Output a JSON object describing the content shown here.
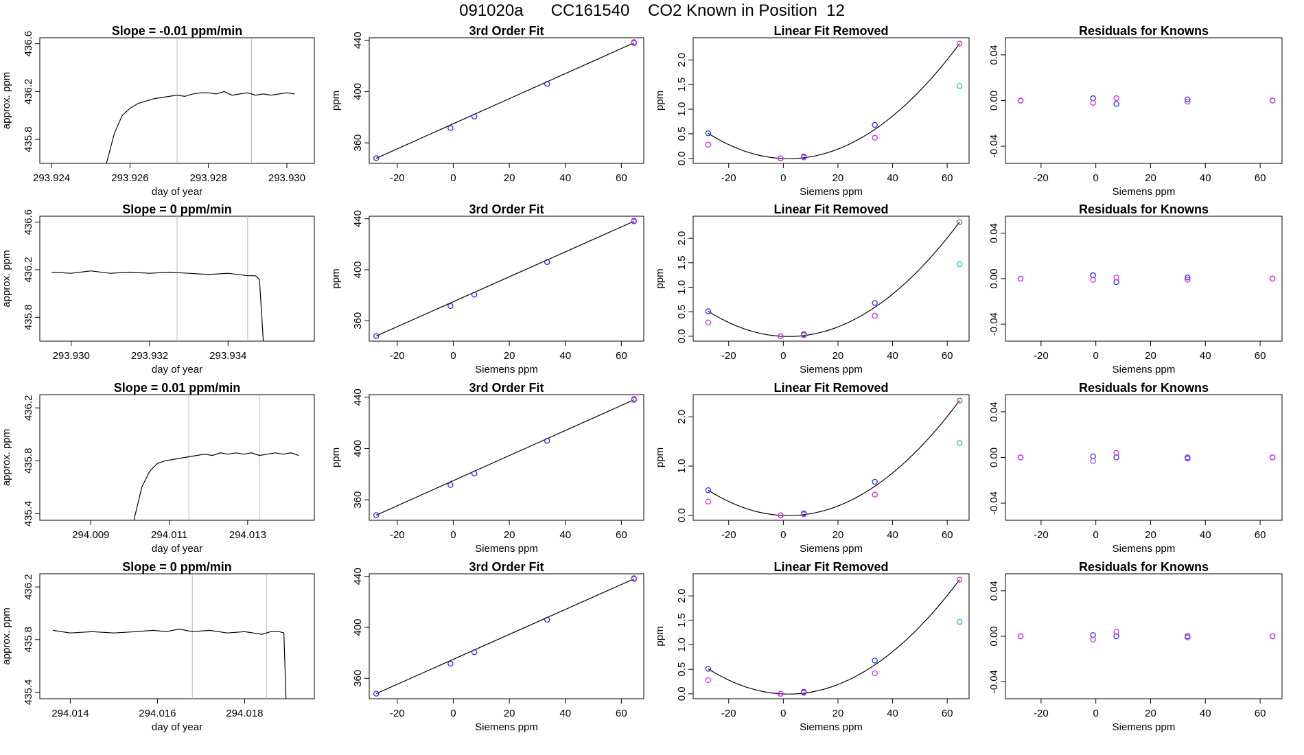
{
  "page_title": "091020a      CC161540    CO2 Known in Position  12",
  "colors": {
    "line": "#000000",
    "blue": "#2f2fe0",
    "magenta": "#cc33dd",
    "cyan": "#22bbdd",
    "purple": "#7722ee",
    "red": "#e03030",
    "vline": "#b8b8b8"
  },
  "chart_data": [
    {
      "type": "line",
      "panel": "row1-col1",
      "title": "Slope =  -0.01  ppm/min",
      "xlabel": "day of year",
      "ylabel": "approx. ppm",
      "xlim": [
        293.9237,
        293.9307
      ],
      "ylim": [
        435.6,
        436.65
      ],
      "xticks": [
        293.924,
        293.926,
        293.928,
        293.93
      ],
      "xtick_labels": [
        "293.924",
        "293.926",
        "293.928",
        "293.930"
      ],
      "yticks": [
        435.8,
        436.2,
        436.6
      ],
      "ytick_labels": [
        "435.8",
        "436.2",
        "436.6"
      ],
      "vlines": [
        293.9272,
        293.9291
      ],
      "x": [
        293.9254,
        293.9256,
        293.9258,
        293.926,
        293.9262,
        293.9264,
        293.9266,
        293.9268,
        293.927,
        293.9272,
        293.9274,
        293.9276,
        293.9278,
        293.928,
        293.9282,
        293.9284,
        293.9286,
        293.9288,
        293.929,
        293.9292,
        293.9294,
        293.9296,
        293.9298,
        293.93,
        293.9302
      ],
      "y": [
        435.6,
        435.85,
        436.0,
        436.06,
        436.1,
        436.12,
        436.14,
        436.15,
        436.16,
        436.17,
        436.16,
        436.18,
        436.19,
        436.19,
        436.18,
        436.2,
        436.17,
        436.18,
        436.19,
        436.17,
        436.18,
        436.17,
        436.18,
        436.19,
        436.18
      ]
    },
    {
      "type": "scatter",
      "panel": "row1-col2",
      "title": "3rd Order Fit",
      "xlabel": "",
      "ylabel": "ppm",
      "xlim": [
        -30,
        68
      ],
      "ylim": [
        344,
        442
      ],
      "xticks": [
        -20,
        0,
        20,
        40,
        60
      ],
      "yticks": [
        360,
        400,
        440
      ],
      "series": [
        {
          "color": "blue",
          "x": [
            -27.5,
            -1,
            7.5,
            33.5,
            64.5
          ],
          "y": [
            348,
            371.5,
            380.5,
            406,
            438
          ]
        },
        {
          "color": "magenta",
          "x": [
            64.5
          ],
          "y": [
            438.6
          ]
        }
      ],
      "fit": {
        "x": [
          -27.5,
          64.5
        ],
        "y": [
          348,
          438
        ]
      }
    },
    {
      "type": "scatter",
      "panel": "row1-col3",
      "title": "Linear Fit Removed",
      "xlabel": "Siemens ppm",
      "ylabel": "ppm",
      "xlim": [
        -33,
        68
      ],
      "ylim": [
        -0.1,
        2.45
      ],
      "xticks": [
        -20,
        0,
        20,
        40,
        60
      ],
      "yticks": [
        0,
        0.5,
        1,
        1.5,
        2
      ],
      "ytick_labels": [
        "0.0",
        "0.5",
        "1.0",
        "1.5",
        "2.0"
      ],
      "series": [
        {
          "color": "blue",
          "x": [
            -27.5,
            -1,
            7.5,
            33.5
          ],
          "y": [
            0.51,
            0,
            0.04,
            0.68
          ]
        },
        {
          "color": "magenta",
          "x": [
            -27.5,
            -1,
            7.5,
            33.5,
            64.5
          ],
          "y": [
            0.28,
            0,
            0.02,
            0.42,
            2.33
          ]
        },
        {
          "color": "cyan",
          "x": [
            64.5
          ],
          "y": [
            1.47
          ]
        }
      ],
      "fit": {
        "x": [
          -27.5,
          -1,
          7.5,
          33.5,
          64.5
        ],
        "y": [
          0.51,
          0,
          0.04,
          0.68,
          2.33
        ]
      }
    },
    {
      "type": "scatter",
      "panel": "row1-col4",
      "title": "Residuals for Knowns",
      "xlabel": "Siemens ppm",
      "ylabel": "",
      "xlim": [
        -33,
        68
      ],
      "ylim": [
        -0.055,
        0.055
      ],
      "xticks": [
        -20,
        0,
        20,
        40,
        60
      ],
      "yticks": [
        -0.04,
        0,
        0.04
      ],
      "ytick_labels": [
        "-0.04",
        "0.00",
        "0.04"
      ],
      "series": [
        {
          "color": "blue",
          "x": [
            -27.5,
            -1,
            7.5,
            33.5,
            64.5
          ],
          "y": [
            0,
            0.002,
            -0.003,
            0.001,
            0
          ]
        },
        {
          "color": "magenta",
          "x": [
            -27.5,
            -1,
            7.5,
            33.5,
            64.5
          ],
          "y": [
            0,
            -0.002,
            0.002,
            -0.001,
            0
          ]
        }
      ]
    },
    {
      "type": "line",
      "panel": "row2-col1",
      "title": "Slope =  0  ppm/min",
      "xlabel": "day of year",
      "ylabel": "approx. ppm",
      "xlim": [
        293.9292,
        293.9362
      ],
      "ylim": [
        435.6,
        436.65
      ],
      "xticks": [
        293.93,
        293.932,
        293.934
      ],
      "xtick_labels": [
        "293.930",
        "293.932",
        "293.934"
      ],
      "yticks": [
        435.8,
        436.2,
        436.6
      ],
      "ytick_labels": [
        "435.8",
        "436.2",
        "436.6"
      ],
      "vlines": [
        293.9327,
        293.9345
      ],
      "x": [
        293.9295,
        293.93,
        293.9305,
        293.931,
        293.9315,
        293.932,
        293.9325,
        293.933,
        293.9335,
        293.934,
        293.9345,
        293.9347,
        293.9348,
        293.9349
      ],
      "y": [
        436.18,
        436.17,
        436.19,
        436.17,
        436.18,
        436.17,
        436.18,
        436.17,
        436.16,
        436.17,
        436.15,
        436.15,
        436.12,
        435.6
      ]
    },
    {
      "type": "scatter",
      "panel": "row2-col2",
      "title": "3rd Order Fit",
      "xlabel": "Siemens ppm",
      "ylabel": "ppm",
      "xlim": [
        -30,
        68
      ],
      "ylim": [
        344,
        442
      ],
      "xticks": [
        -20,
        0,
        20,
        40,
        60
      ],
      "yticks": [
        360,
        400,
        440
      ],
      "series": [
        {
          "color": "blue",
          "x": [
            -27.5,
            -1,
            7.5,
            33.5,
            64.5
          ],
          "y": [
            348,
            371.5,
            380.5,
            406,
            438
          ]
        },
        {
          "color": "magenta",
          "x": [
            64.5
          ],
          "y": [
            438.6
          ]
        }
      ],
      "fit": {
        "x": [
          -27.5,
          64.5
        ],
        "y": [
          348,
          438
        ]
      }
    },
    {
      "type": "scatter",
      "panel": "row2-col3",
      "title": "Linear Fit Removed",
      "xlabel": "Siemens ppm",
      "ylabel": "ppm",
      "xlim": [
        -33,
        68
      ],
      "ylim": [
        -0.1,
        2.45
      ],
      "xticks": [
        -20,
        0,
        20,
        40,
        60
      ],
      "yticks": [
        0,
        0.5,
        1,
        1.5,
        2
      ],
      "ytick_labels": [
        "0.0",
        "0.5",
        "1.0",
        "1.5",
        "2.0"
      ],
      "series": [
        {
          "color": "blue",
          "x": [
            -27.5,
            -1,
            7.5,
            33.5
          ],
          "y": [
            0.51,
            0,
            0.04,
            0.68
          ]
        },
        {
          "color": "magenta",
          "x": [
            -27.5,
            -1,
            7.5,
            33.5,
            64.5
          ],
          "y": [
            0.28,
            0,
            0.02,
            0.42,
            2.33
          ]
        },
        {
          "color": "cyan",
          "x": [
            64.5
          ],
          "y": [
            1.47
          ]
        }
      ],
      "fit": {
        "x": [
          -27.5,
          -1,
          7.5,
          33.5,
          64.5
        ],
        "y": [
          0.51,
          0,
          0.04,
          0.68,
          2.33
        ]
      }
    },
    {
      "type": "scatter",
      "panel": "row2-col4",
      "title": "Residuals for Knowns",
      "xlabel": "Siemens ppm",
      "ylabel": "",
      "xlim": [
        -33,
        68
      ],
      "ylim": [
        -0.055,
        0.055
      ],
      "xticks": [
        -20,
        0,
        20,
        40,
        60
      ],
      "yticks": [
        -0.04,
        0,
        0.04
      ],
      "ytick_labels": [
        "-0.04",
        "0.00",
        "0.04"
      ],
      "series": [
        {
          "color": "blue",
          "x": [
            -27.5,
            -1,
            7.5,
            33.5,
            64.5
          ],
          "y": [
            0,
            0.003,
            -0.003,
            0.001,
            0
          ]
        },
        {
          "color": "magenta",
          "x": [
            -27.5,
            -1,
            7.5,
            33.5,
            64.5
          ],
          "y": [
            0,
            -0.001,
            0.001,
            -0.001,
            0
          ]
        }
      ]
    },
    {
      "type": "line",
      "panel": "row3-col1",
      "title": "Slope =  0.01  ppm/min",
      "xlabel": "day of year",
      "ylabel": "approx. ppm",
      "xlim": [
        294.0077,
        294.0147
      ],
      "ylim": [
        435.35,
        436.3
      ],
      "xticks": [
        294.009,
        294.011,
        294.013
      ],
      "xtick_labels": [
        "294.009",
        "294.011",
        "294.013"
      ],
      "yticks": [
        435.4,
        435.8,
        436.2
      ],
      "ytick_labels": [
        "435.4",
        "435.8",
        "436.2"
      ],
      "vlines": [
        294.0115,
        294.0133
      ],
      "x": [
        294.0101,
        294.0103,
        294.0105,
        294.0107,
        294.0109,
        294.0111,
        294.0113,
        294.0115,
        294.0117,
        294.0119,
        294.0121,
        294.0123,
        294.0125,
        294.0127,
        294.0129,
        294.0131,
        294.0133,
        294.0135,
        294.0137,
        294.0139,
        294.0141,
        294.0143
      ],
      "y": [
        435.35,
        435.6,
        435.72,
        435.78,
        435.8,
        435.81,
        435.82,
        435.83,
        435.84,
        435.85,
        435.84,
        435.86,
        435.85,
        435.86,
        435.85,
        435.86,
        435.84,
        435.85,
        435.86,
        435.85,
        435.86,
        435.84
      ]
    },
    {
      "type": "scatter",
      "panel": "row3-col2",
      "title": "3rd Order Fit",
      "xlabel": "Siemens ppm",
      "ylabel": "ppm",
      "xlim": [
        -30,
        68
      ],
      "ylim": [
        344,
        442
      ],
      "xticks": [
        -20,
        0,
        20,
        40,
        60
      ],
      "yticks": [
        360,
        400,
        440
      ],
      "series": [
        {
          "color": "blue",
          "x": [
            -27.5,
            -1,
            7.5,
            33.5,
            64.5
          ],
          "y": [
            348,
            371.5,
            380.5,
            406,
            438
          ]
        },
        {
          "color": "magenta",
          "x": [
            64.5
          ],
          "y": [
            438.6
          ]
        }
      ],
      "fit": {
        "x": [
          -27.5,
          64.5
        ],
        "y": [
          348,
          438
        ]
      }
    },
    {
      "type": "scatter",
      "panel": "row3-col3",
      "title": "Linear Fit Removed",
      "xlabel": "Siemens ppm",
      "ylabel": "ppm",
      "xlim": [
        -33,
        68
      ],
      "ylim": [
        -0.1,
        2.45
      ],
      "xticks": [
        -20,
        0,
        20,
        40,
        60
      ],
      "yticks": [
        0,
        1,
        2
      ],
      "ytick_labels": [
        "0.0",
        "1.0",
        "2.0"
      ],
      "series": [
        {
          "color": "blue",
          "x": [
            -27.5,
            -1,
            7.5,
            33.5
          ],
          "y": [
            0.51,
            0,
            0.04,
            0.68
          ]
        },
        {
          "color": "magenta",
          "x": [
            -27.5,
            -1,
            7.5,
            33.5,
            64.5
          ],
          "y": [
            0.28,
            0,
            0.02,
            0.42,
            2.33
          ]
        },
        {
          "color": "cyan",
          "x": [
            64.5
          ],
          "y": [
            1.47
          ]
        }
      ],
      "fit": {
        "x": [
          -27.5,
          -1,
          7.5,
          33.5,
          64.5
        ],
        "y": [
          0.51,
          0,
          0.04,
          0.68,
          2.33
        ]
      }
    },
    {
      "type": "scatter",
      "panel": "row3-col4",
      "title": "Residuals for Knowns",
      "xlabel": "Siemens ppm",
      "ylabel": "",
      "xlim": [
        -33,
        68
      ],
      "ylim": [
        -0.055,
        0.055
      ],
      "xticks": [
        -20,
        0,
        20,
        40,
        60
      ],
      "yticks": [
        -0.04,
        0,
        0.04
      ],
      "ytick_labels": [
        "-0.04",
        "0.00",
        "0.04"
      ],
      "series": [
        {
          "color": "blue",
          "x": [
            -27.5,
            -1,
            7.5,
            33.5,
            64.5
          ],
          "y": [
            0,
            0.001,
            0,
            0,
            0
          ]
        },
        {
          "color": "magenta",
          "x": [
            -27.5,
            -1,
            7.5,
            33.5,
            64.5
          ],
          "y": [
            0,
            -0.003,
            0.004,
            -0.001,
            0
          ]
        }
      ]
    },
    {
      "type": "line",
      "panel": "row4-col1",
      "title": "Slope =  0  ppm/min",
      "xlabel": "day of year",
      "ylabel": "approx. ppm",
      "xlim": [
        294.0133,
        294.0196
      ],
      "ylim": [
        435.35,
        436.3
      ],
      "xticks": [
        294.014,
        294.016,
        294.018
      ],
      "xtick_labels": [
        "294.014",
        "294.016",
        "294.018"
      ],
      "yticks": [
        435.4,
        435.8,
        436.2
      ],
      "ytick_labels": [
        "435.4",
        "435.8",
        "436.2"
      ],
      "vlines": [
        294.0168,
        294.0185
      ],
      "x": [
        294.0136,
        294.014,
        294.0145,
        294.015,
        294.0155,
        294.0159,
        294.0162,
        294.0165,
        294.0168,
        294.0172,
        294.0176,
        294.018,
        294.0184,
        294.0186,
        294.0188,
        294.0189,
        294.01895
      ],
      "y": [
        435.87,
        435.85,
        435.86,
        435.85,
        435.86,
        435.87,
        435.86,
        435.88,
        435.86,
        435.87,
        435.85,
        435.86,
        435.84,
        435.86,
        435.86,
        435.85,
        435.35
      ]
    },
    {
      "type": "scatter",
      "panel": "row4-col2",
      "title": "3rd Order Fit",
      "xlabel": "Siemens ppm",
      "ylabel": "",
      "xlim": [
        -30,
        68
      ],
      "ylim": [
        344,
        442
      ],
      "xticks": [
        -20,
        0,
        20,
        40,
        60
      ],
      "yticks": [
        360,
        400,
        440
      ],
      "series": [
        {
          "color": "blue",
          "x": [
            -27.5,
            -1,
            7.5,
            33.5,
            64.5
          ],
          "y": [
            348,
            371.5,
            380.5,
            406,
            438
          ]
        },
        {
          "color": "magenta",
          "x": [
            64.5
          ],
          "y": [
            438.6
          ]
        }
      ],
      "fit": {
        "x": [
          -27.5,
          64.5
        ],
        "y": [
          348,
          438
        ]
      }
    },
    {
      "type": "scatter",
      "panel": "row4-col3",
      "title": "Linear Fit Removed",
      "xlabel": "Siemens ppm",
      "ylabel": "ppm",
      "xlim": [
        -33,
        68
      ],
      "ylim": [
        -0.1,
        2.45
      ],
      "xticks": [
        -20,
        0,
        20,
        40,
        60
      ],
      "yticks": [
        0,
        0.5,
        1,
        1.5,
        2
      ],
      "ytick_labels": [
        "0.0",
        "0.5",
        "1.0",
        "1.5",
        "2.0"
      ],
      "series": [
        {
          "color": "blue",
          "x": [
            -27.5,
            -1,
            7.5,
            33.5
          ],
          "y": [
            0.51,
            0,
            0.04,
            0.68
          ]
        },
        {
          "color": "magenta",
          "x": [
            -27.5,
            -1,
            7.5,
            33.5,
            64.5
          ],
          "y": [
            0.28,
            0,
            0.02,
            0.42,
            2.33
          ]
        },
        {
          "color": "cyan",
          "x": [
            64.5
          ],
          "y": [
            1.47
          ]
        }
      ],
      "fit": {
        "x": [
          -27.5,
          -1,
          7.5,
          33.5,
          64.5
        ],
        "y": [
          0.51,
          0,
          0.04,
          0.68,
          2.33
        ]
      }
    },
    {
      "type": "scatter",
      "panel": "row4-col4",
      "title": "Residuals for Knowns",
      "xlabel": "Siemens ppm",
      "ylabel": "",
      "xlim": [
        -33,
        68
      ],
      "ylim": [
        -0.055,
        0.055
      ],
      "xticks": [
        -20,
        0,
        20,
        40,
        60
      ],
      "yticks": [
        -0.04,
        0,
        0.04
      ],
      "ytick_labels": [
        "-0.04",
        "0.00",
        "0.04"
      ],
      "series": [
        {
          "color": "blue",
          "x": [
            -27.5,
            -1,
            7.5,
            33.5,
            64.5
          ],
          "y": [
            0,
            0.001,
            0,
            0,
            0
          ]
        },
        {
          "color": "magenta",
          "x": [
            -27.5,
            -1,
            7.5,
            33.5,
            64.5
          ],
          "y": [
            0,
            -0.003,
            0.004,
            -0.001,
            0
          ]
        }
      ]
    }
  ]
}
